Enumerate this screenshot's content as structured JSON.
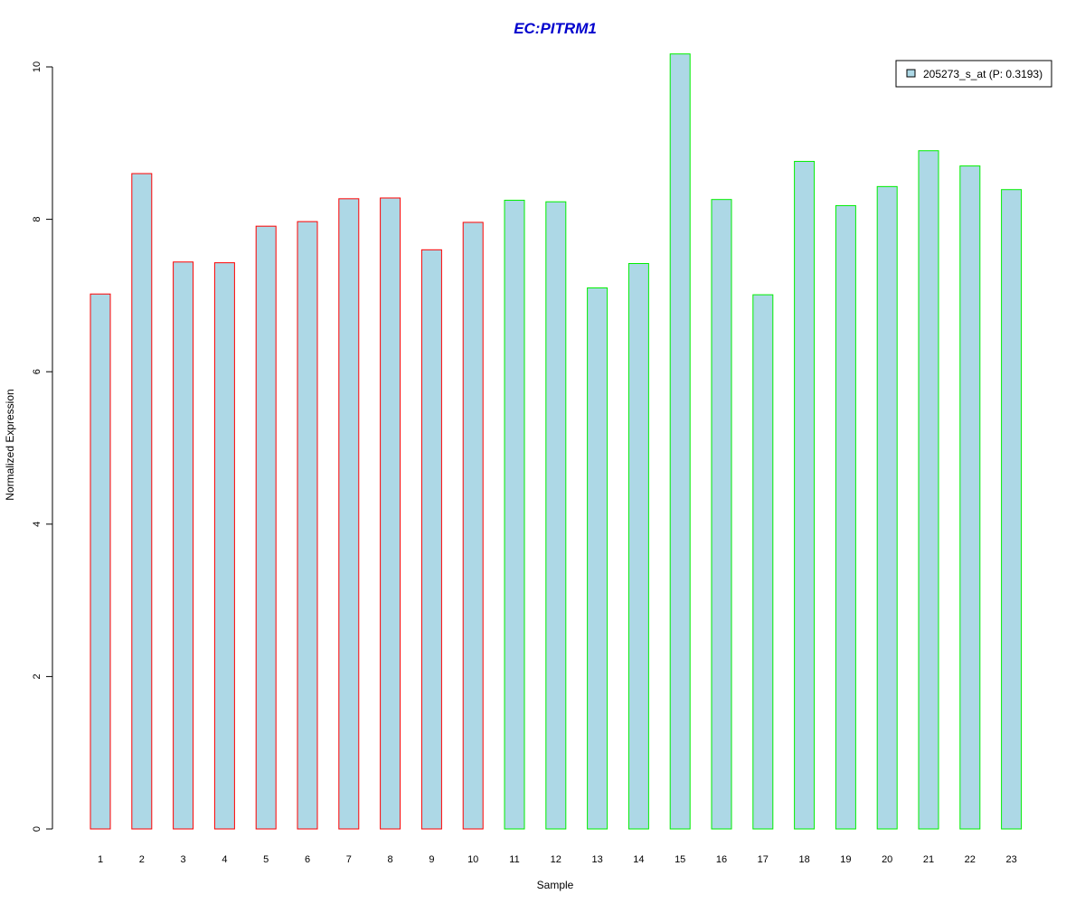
{
  "chart_data": {
    "type": "bar",
    "title": "EC:PITRM1",
    "xlabel": "Sample",
    "ylabel": "Normalized Expression",
    "categories": [
      "1",
      "2",
      "3",
      "4",
      "5",
      "6",
      "7",
      "8",
      "9",
      "10",
      "11",
      "12",
      "13",
      "14",
      "15",
      "16",
      "17",
      "18",
      "19",
      "20",
      "21",
      "22",
      "23"
    ],
    "series": [
      {
        "name": "205273_s_at (P: 0.3193)",
        "values": [
          7.02,
          8.6,
          7.44,
          7.43,
          7.91,
          7.97,
          8.27,
          8.28,
          7.6,
          7.96,
          8.25,
          8.23,
          7.1,
          7.42,
          10.17,
          8.26,
          7.01,
          8.76,
          8.18,
          8.43,
          8.9,
          8.7,
          8.39
        ]
      }
    ],
    "groups": [
      "red",
      "red",
      "red",
      "red",
      "red",
      "red",
      "red",
      "red",
      "red",
      "red",
      "green",
      "green",
      "green",
      "green",
      "green",
      "green",
      "green",
      "green",
      "green",
      "green",
      "green",
      "green",
      "green"
    ],
    "yticks": [
      0,
      2,
      4,
      6,
      8,
      10
    ],
    "ylim": [
      0,
      10.2
    ],
    "grid": false,
    "legend_position": "top-right",
    "colors": {
      "bar_fill": "#add8e6",
      "group_red_border": "#ff0000",
      "group_green_border": "#00ee00",
      "title": "#0000cd"
    }
  }
}
